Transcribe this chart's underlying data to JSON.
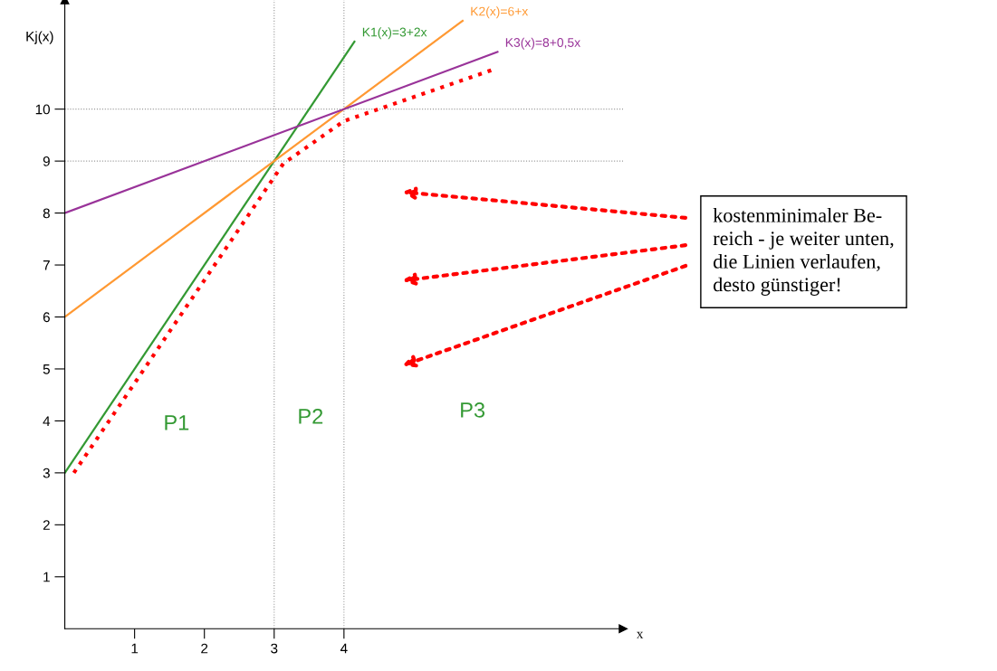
{
  "chart_data": {
    "type": "line",
    "xlabel": "x",
    "ylabel": "Kj(x)",
    "xlim": [
      0,
      8
    ],
    "ylim": [
      0,
      12.1
    ],
    "xticks": [
      1,
      2,
      3,
      4
    ],
    "yticks": [
      1,
      2,
      3,
      4,
      5,
      6,
      7,
      8,
      9,
      10
    ],
    "grid": false,
    "series": [
      {
        "name": "K1(x)=3+2x",
        "color": "#339933",
        "x": [
          0,
          4.15
        ],
        "values": [
          3,
          11.3
        ]
      },
      {
        "name": "K2(x)=6+x",
        "color": "#ff9933",
        "x": [
          0,
          5.7
        ],
        "values": [
          6,
          11.7
        ]
      },
      {
        "name": "K3(x)=8+0,5x",
        "color": "#993399",
        "x": [
          0,
          6.2
        ],
        "values": [
          8,
          11.1
        ]
      },
      {
        "color": "#ff0000",
        "line_style": "dotted",
        "x": [
          0.13,
          3.13,
          4.0,
          6.18
        ],
        "values": [
          3.0,
          8.95,
          9.77,
          10.78
        ]
      }
    ],
    "ref_lines": [
      {
        "axis": "y",
        "value": 9,
        "color": "#999999",
        "line_style": "dotted"
      },
      {
        "axis": "y",
        "value": 10,
        "color": "#999999",
        "line_style": "dotted"
      },
      {
        "axis": "x",
        "value": 3,
        "color": "#999999",
        "line_style": "dotted"
      },
      {
        "axis": "x",
        "value": 4,
        "color": "#999999",
        "line_style": "dotted"
      }
    ],
    "annotations": [
      "P1",
      "P2",
      "P3",
      "kostenminimaler Be-\nreich - je weiter unten,\ndie Linien verlaufen,\ndesto günstiger!"
    ]
  }
}
